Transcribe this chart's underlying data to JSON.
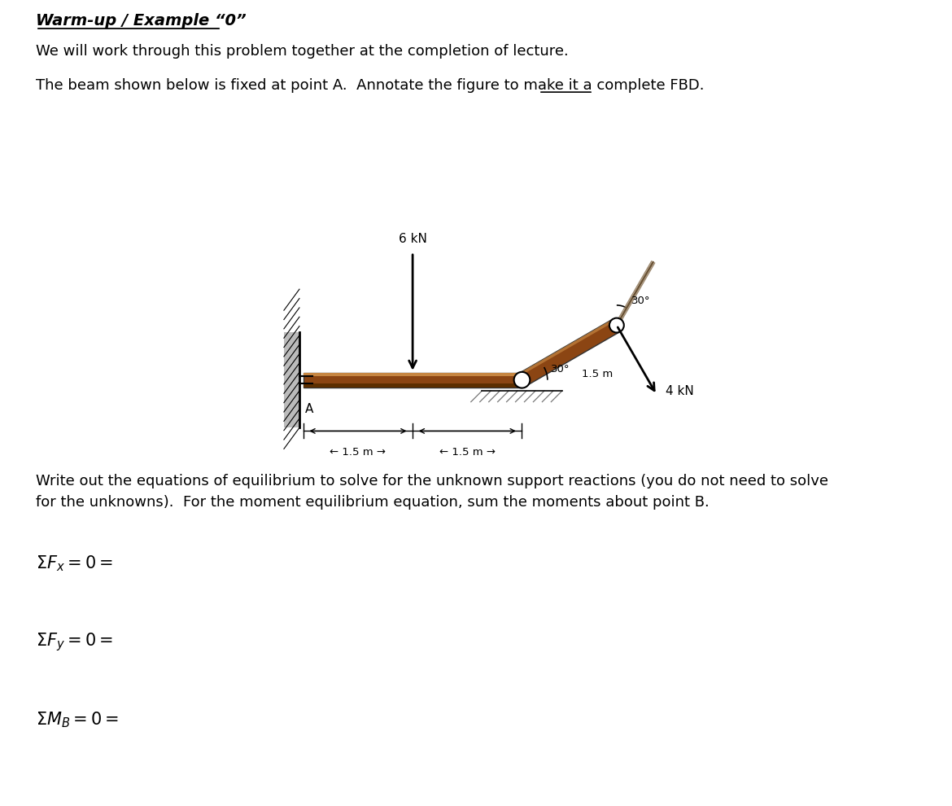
{
  "title_text": "Warm-up / Example “0”",
  "line1": "We will work through this problem together at the completion of lecture.",
  "line2": "The beam shown below is fixed at point A.  Annotate the figure to make it a complete FBD.",
  "write_out_text1": "Write out the equations of equilibrium to solve for the unknown support reactions (you do not need to solve",
  "write_out_text2": "for the unknowns).  For the moment equilibrium equation, sum the moments about point B.",
  "force_6kN_label": "6 kN",
  "force_4kN_label": "4 kN",
  "dim3": "1.5 m",
  "angle1": "30°",
  "angle2": "30°",
  "label_A": "A",
  "bg_color": "#ffffff",
  "beam_color": "#8B4513",
  "beam_highlight": "#C68642",
  "wall_color": "#999999",
  "text_fontsize": 13,
  "title_fontsize": 14,
  "eq_fontsize": 15
}
